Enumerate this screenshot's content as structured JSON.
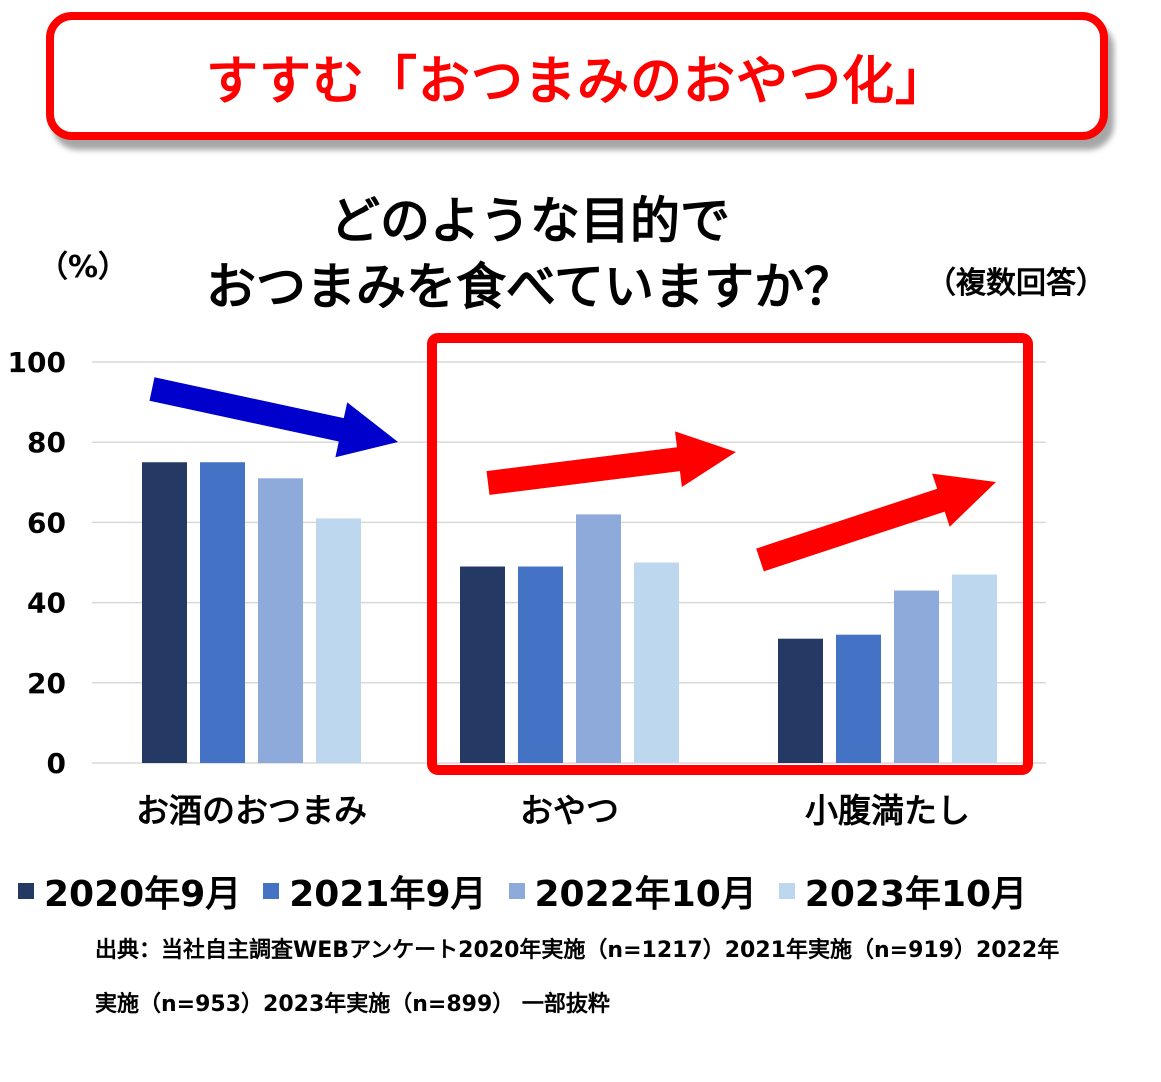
{
  "banner": {
    "text": "すすむ「おつまみのおやつ化」"
  },
  "title": {
    "line1": "どのような目的で",
    "line2": "おつまみを食べていますか？",
    "note": "（複数回答）"
  },
  "unit": "（%）",
  "source": {
    "line1": "出典：当社自主調査WEBアンケート2020年実施（n=1217）2021年実施（n=919）2022年",
    "line2": "実施（n=953）2023年実施（n=899） 一部抜粋"
  },
  "colors": {
    "series": [
      "#243a64",
      "#4472c4",
      "#8eaadb",
      "#bdd7ee"
    ],
    "highlight": "#ff0000",
    "arrow_down": "#0000cc",
    "arrow_up": "#ff0000"
  },
  "chart_data": {
    "type": "bar",
    "categories": [
      "お酒のおつまみ",
      "おやつ",
      "小腹満たし"
    ],
    "series": [
      {
        "name": "2020年9月",
        "values": [
          75,
          49,
          31
        ]
      },
      {
        "name": "2021年9月",
        "values": [
          75,
          49,
          32
        ]
      },
      {
        "name": "2022年10月",
        "values": [
          71,
          62,
          43
        ]
      },
      {
        "name": "2023年10月",
        "values": [
          61,
          50,
          47
        ]
      }
    ],
    "yticks": [
      0,
      20,
      40,
      60,
      80,
      100
    ],
    "ylim": [
      0,
      100
    ],
    "grid": true,
    "legend": "bottom"
  }
}
